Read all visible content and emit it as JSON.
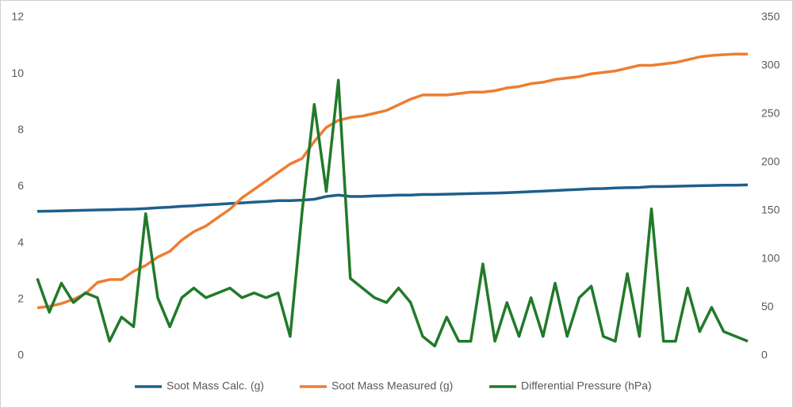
{
  "chart_data": {
    "type": "line",
    "categories": [
      null,
      null,
      null,
      null,
      null,
      null,
      null,
      null,
      null,
      null,
      null,
      null,
      null,
      null,
      null,
      null,
      null,
      null,
      null,
      null,
      null,
      null,
      null,
      null,
      null,
      null,
      null,
      null,
      null,
      null,
      null,
      null,
      null,
      null,
      null,
      null,
      null,
      null,
      null,
      null,
      null,
      null,
      null,
      null,
      null,
      null,
      null,
      null,
      null,
      null,
      null,
      null,
      null,
      null,
      null,
      null,
      null,
      null,
      null,
      null
    ],
    "ylim": [
      0,
      12
    ],
    "yticks": [
      0,
      2,
      4,
      6,
      8,
      10,
      12
    ],
    "y2lim": [
      0,
      350
    ],
    "y2ticks": [
      0,
      50,
      100,
      150,
      200,
      250,
      300,
      350
    ],
    "series": [
      {
        "name": "Soot Mass Calc. (g)",
        "color": "#1f5f8b",
        "values": [
          5.12,
          5.13,
          5.14,
          5.15,
          5.16,
          5.17,
          5.18,
          5.19,
          5.2,
          5.22,
          5.25,
          5.27,
          5.3,
          5.32,
          5.35,
          5.37,
          5.4,
          5.42,
          5.45,
          5.47,
          5.5,
          5.5,
          5.52,
          5.55,
          5.65,
          5.7,
          5.65,
          5.65,
          5.67,
          5.68,
          5.7,
          5.7,
          5.72,
          5.72,
          5.73,
          5.74,
          5.75,
          5.76,
          5.77,
          5.78,
          5.8,
          5.82,
          5.84,
          5.86,
          5.88,
          5.9,
          5.92,
          5.93,
          5.95,
          5.96,
          5.97,
          6.0,
          6.0,
          6.01,
          6.02,
          6.03,
          6.04,
          6.05,
          6.05,
          6.06
        ]
      },
      {
        "name": "Soot Mass Measured (g)",
        "color": "#ed7d31",
        "values": [
          1.7,
          1.75,
          1.85,
          2.0,
          2.2,
          2.6,
          2.7,
          2.7,
          3.0,
          3.2,
          3.5,
          3.7,
          4.1,
          4.4,
          4.6,
          4.9,
          5.2,
          5.6,
          5.9,
          6.2,
          6.5,
          6.8,
          7.0,
          7.6,
          8.1,
          8.35,
          8.45,
          8.5,
          8.6,
          8.7,
          8.9,
          9.1,
          9.25,
          9.25,
          9.25,
          9.3,
          9.35,
          9.35,
          9.4,
          9.5,
          9.55,
          9.65,
          9.7,
          9.8,
          9.85,
          9.9,
          10.0,
          10.05,
          10.1,
          10.2,
          10.3,
          10.3,
          10.35,
          10.4,
          10.5,
          10.6,
          10.65,
          10.68,
          10.7,
          10.7
        ]
      },
      {
        "name": "Differential Pressure (hPa)",
        "color": "#217a2a",
        "axis": "y2",
        "values": [
          80,
          45,
          75,
          55,
          65,
          60,
          15,
          40,
          30,
          147,
          60,
          30,
          60,
          70,
          60,
          65,
          70,
          60,
          65,
          60,
          65,
          20,
          150,
          260,
          170,
          285,
          80,
          70,
          60,
          55,
          70,
          55,
          20,
          10,
          40,
          15,
          15,
          95,
          15,
          55,
          20,
          60,
          20,
          75,
          20,
          60,
          72,
          20,
          15,
          85,
          20,
          152,
          15,
          15,
          70,
          25,
          50,
          25,
          20,
          15
        ]
      }
    ]
  }
}
